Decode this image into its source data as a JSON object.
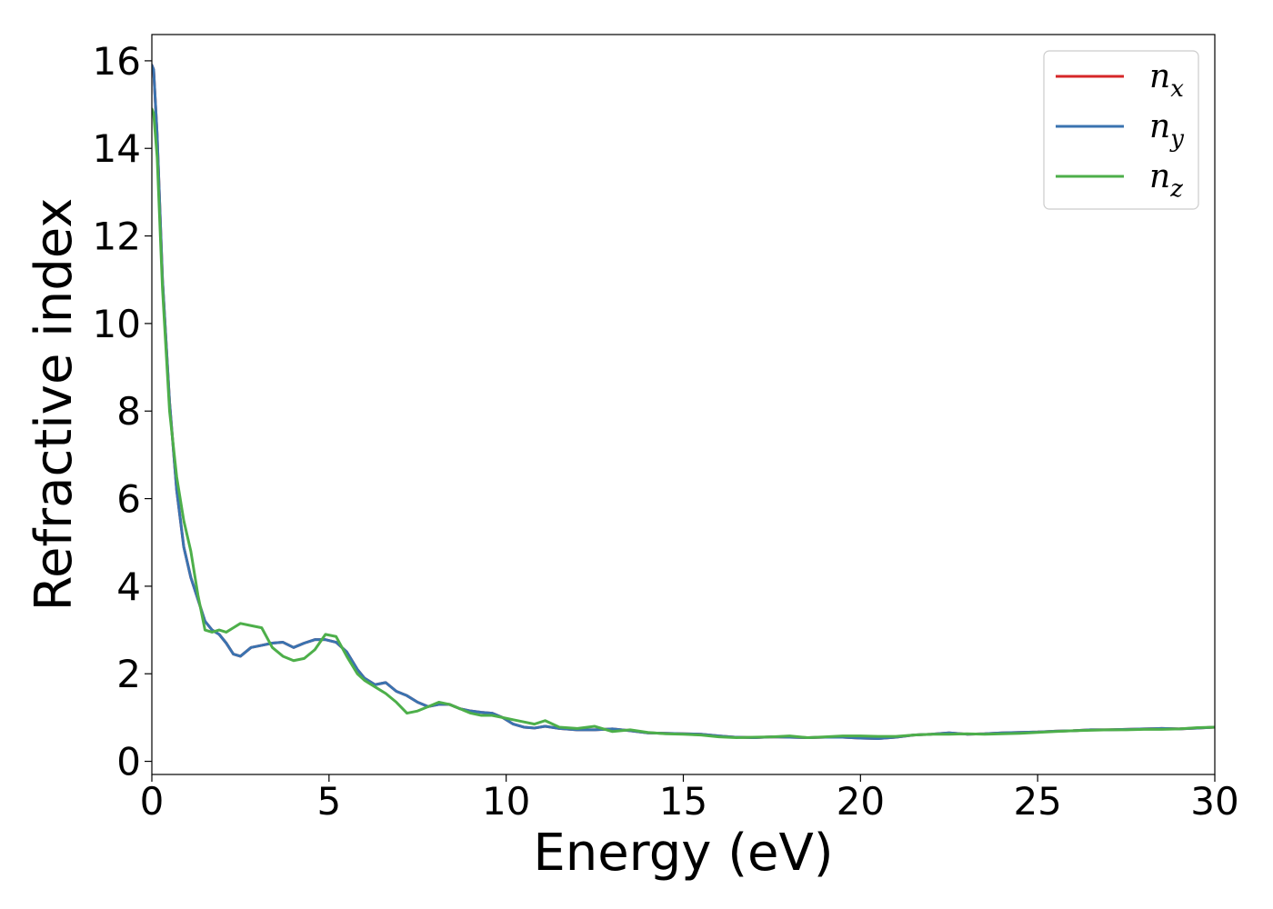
{
  "chart_data": {
    "type": "line",
    "title": "",
    "xlabel": "Energy (eV)",
    "ylabel": "Refractive index",
    "xlim": [
      0,
      30
    ],
    "ylim": [
      -0.3,
      16.6
    ],
    "xticks": [
      0,
      5,
      10,
      15,
      20,
      25,
      30
    ],
    "yticks": [
      0,
      2,
      4,
      6,
      8,
      10,
      12,
      14,
      16
    ],
    "grid": false,
    "legend": {
      "position": "top-right",
      "entries": [
        {
          "base": "n",
          "sub": "x"
        },
        {
          "base": "n",
          "sub": "y"
        },
        {
          "base": "n",
          "sub": "z"
        }
      ]
    },
    "series": [
      {
        "name": "n_x",
        "color": "#d62728",
        "x": [
          0,
          0.05,
          0.15,
          0.3,
          0.5,
          0.7,
          0.9,
          1.1,
          1.3,
          1.5,
          1.7,
          1.9,
          2.1,
          2.3,
          2.5,
          2.8,
          3.1,
          3.4,
          3.7,
          4.0,
          4.3,
          4.6,
          4.9,
          5.2,
          5.5,
          5.8,
          6.0,
          6.3,
          6.6,
          6.9,
          7.2,
          7.5,
          7.8,
          8.1,
          8.4,
          8.7,
          9.0,
          9.3,
          9.6,
          9.9,
          10.2,
          10.5,
          10.8,
          11.1,
          11.5,
          12.0,
          12.5,
          13.0,
          13.5,
          14.0,
          14.5,
          15.0,
          15.5,
          16.0,
          16.5,
          17.0,
          17.5,
          18.0,
          18.5,
          19.0,
          19.5,
          20.0,
          20.5,
          21.0,
          21.5,
          22.0,
          22.5,
          23.0,
          23.5,
          24.0,
          24.5,
          25.0,
          25.5,
          26.0,
          26.5,
          27.0,
          27.5,
          28.0,
          28.5,
          29.0,
          29.5,
          30.0
        ],
        "y": [
          15.9,
          15.8,
          14.3,
          11.0,
          8.2,
          6.2,
          4.9,
          4.2,
          3.7,
          3.2,
          3.0,
          2.9,
          2.7,
          2.45,
          2.4,
          2.6,
          2.65,
          2.7,
          2.72,
          2.6,
          2.7,
          2.78,
          2.78,
          2.72,
          2.5,
          2.1,
          1.9,
          1.75,
          1.8,
          1.6,
          1.5,
          1.35,
          1.25,
          1.3,
          1.3,
          1.2,
          1.15,
          1.12,
          1.1,
          1.0,
          0.85,
          0.78,
          0.76,
          0.8,
          0.75,
          0.72,
          0.72,
          0.74,
          0.7,
          0.65,
          0.64,
          0.63,
          0.62,
          0.58,
          0.55,
          0.54,
          0.56,
          0.55,
          0.54,
          0.55,
          0.55,
          0.53,
          0.52,
          0.55,
          0.6,
          0.62,
          0.65,
          0.62,
          0.63,
          0.65,
          0.66,
          0.67,
          0.69,
          0.7,
          0.72,
          0.72,
          0.73,
          0.74,
          0.75,
          0.74,
          0.76,
          0.78
        ]
      },
      {
        "name": "n_y",
        "color": "#3a73b0",
        "x": [
          0,
          0.05,
          0.15,
          0.3,
          0.5,
          0.7,
          0.9,
          1.1,
          1.3,
          1.5,
          1.7,
          1.9,
          2.1,
          2.3,
          2.5,
          2.8,
          3.1,
          3.4,
          3.7,
          4.0,
          4.3,
          4.6,
          4.9,
          5.2,
          5.5,
          5.8,
          6.0,
          6.3,
          6.6,
          6.9,
          7.2,
          7.5,
          7.8,
          8.1,
          8.4,
          8.7,
          9.0,
          9.3,
          9.6,
          9.9,
          10.2,
          10.5,
          10.8,
          11.1,
          11.5,
          12.0,
          12.5,
          13.0,
          13.5,
          14.0,
          14.5,
          15.0,
          15.5,
          16.0,
          16.5,
          17.0,
          17.5,
          18.0,
          18.5,
          19.0,
          19.5,
          20.0,
          20.5,
          21.0,
          21.5,
          22.0,
          22.5,
          23.0,
          23.5,
          24.0,
          24.5,
          25.0,
          25.5,
          26.0,
          26.5,
          27.0,
          27.5,
          28.0,
          28.5,
          29.0,
          29.5,
          30.0
        ],
        "y": [
          15.9,
          15.8,
          14.3,
          11.0,
          8.2,
          6.2,
          4.9,
          4.2,
          3.7,
          3.2,
          3.0,
          2.9,
          2.7,
          2.45,
          2.4,
          2.6,
          2.65,
          2.7,
          2.72,
          2.6,
          2.7,
          2.78,
          2.78,
          2.72,
          2.5,
          2.1,
          1.9,
          1.75,
          1.8,
          1.6,
          1.5,
          1.35,
          1.25,
          1.3,
          1.3,
          1.2,
          1.15,
          1.12,
          1.1,
          1.0,
          0.85,
          0.78,
          0.76,
          0.8,
          0.75,
          0.72,
          0.72,
          0.74,
          0.7,
          0.65,
          0.64,
          0.63,
          0.62,
          0.58,
          0.55,
          0.54,
          0.56,
          0.55,
          0.54,
          0.55,
          0.55,
          0.53,
          0.52,
          0.55,
          0.6,
          0.62,
          0.65,
          0.62,
          0.63,
          0.65,
          0.66,
          0.67,
          0.69,
          0.7,
          0.72,
          0.72,
          0.73,
          0.74,
          0.75,
          0.74,
          0.76,
          0.78
        ]
      },
      {
        "name": "n_z",
        "color": "#4daf4a",
        "x": [
          0,
          0.05,
          0.15,
          0.3,
          0.5,
          0.7,
          0.9,
          1.1,
          1.3,
          1.5,
          1.7,
          1.9,
          2.1,
          2.3,
          2.5,
          2.8,
          3.1,
          3.4,
          3.7,
          4.0,
          4.3,
          4.6,
          4.9,
          5.2,
          5.5,
          5.8,
          6.0,
          6.3,
          6.6,
          6.9,
          7.2,
          7.5,
          7.8,
          8.1,
          8.4,
          8.7,
          9.0,
          9.3,
          9.6,
          9.9,
          10.2,
          10.5,
          10.8,
          11.1,
          11.5,
          12.0,
          12.5,
          13.0,
          13.5,
          14.0,
          14.5,
          15.0,
          15.5,
          16.0,
          16.5,
          17.0,
          17.5,
          18.0,
          18.5,
          19.0,
          19.5,
          20.0,
          20.5,
          21.0,
          21.5,
          22.0,
          22.5,
          23.0,
          23.5,
          24.0,
          24.5,
          25.0,
          25.5,
          26.0,
          26.5,
          27.0,
          27.5,
          28.0,
          28.5,
          29.0,
          29.5,
          30.0
        ],
        "y": [
          14.9,
          14.8,
          13.8,
          10.8,
          8.0,
          6.5,
          5.5,
          4.8,
          3.8,
          3.0,
          2.95,
          3.0,
          2.95,
          3.05,
          3.15,
          3.1,
          3.05,
          2.6,
          2.4,
          2.3,
          2.35,
          2.55,
          2.9,
          2.85,
          2.4,
          2.0,
          1.85,
          1.7,
          1.55,
          1.35,
          1.1,
          1.15,
          1.25,
          1.35,
          1.3,
          1.2,
          1.1,
          1.05,
          1.05,
          1.0,
          0.95,
          0.9,
          0.85,
          0.93,
          0.78,
          0.75,
          0.8,
          0.68,
          0.72,
          0.66,
          0.63,
          0.62,
          0.6,
          0.56,
          0.54,
          0.55,
          0.56,
          0.58,
          0.54,
          0.56,
          0.58,
          0.58,
          0.57,
          0.57,
          0.6,
          0.62,
          0.62,
          0.63,
          0.62,
          0.63,
          0.64,
          0.66,
          0.68,
          0.7,
          0.71,
          0.72,
          0.72,
          0.73,
          0.73,
          0.74,
          0.77,
          0.78
        ]
      }
    ]
  }
}
